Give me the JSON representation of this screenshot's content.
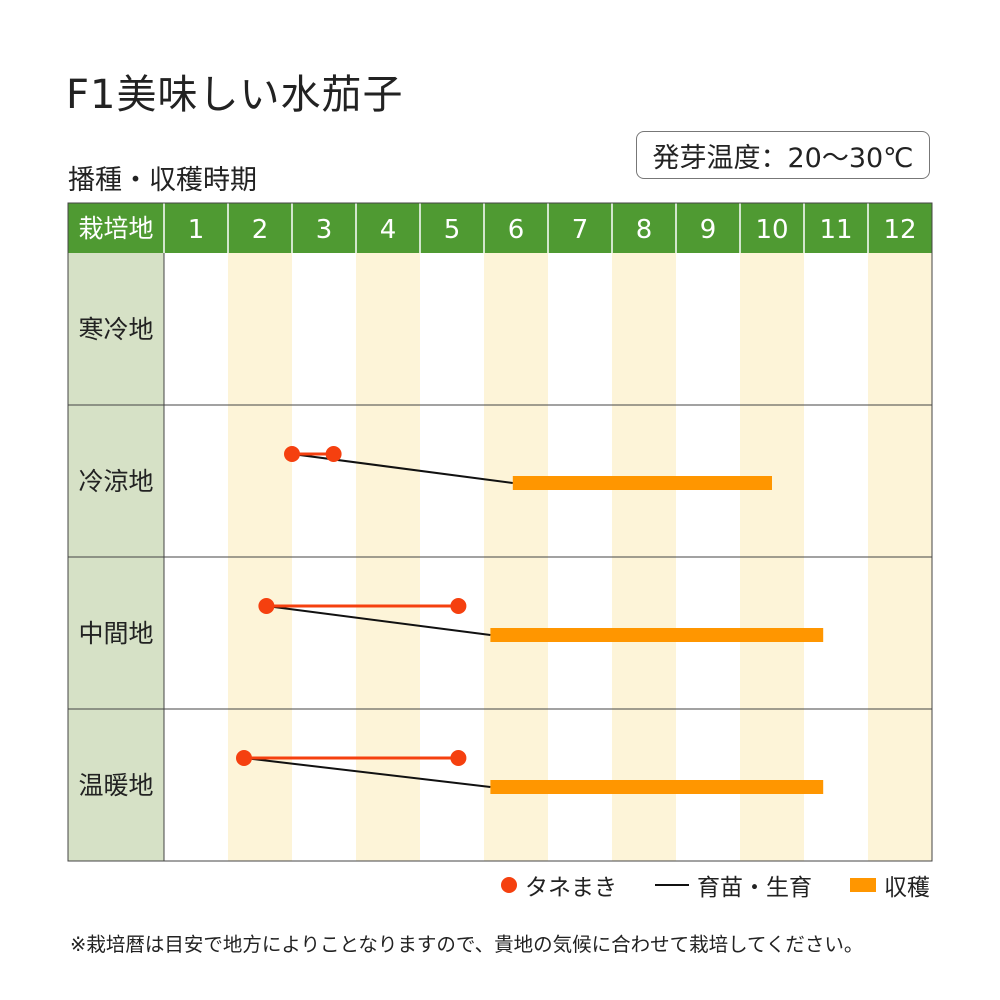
{
  "title": "F1美味しい水茄子",
  "subtitle": "播種・収穫時期",
  "germination": "発芽温度：20～30℃",
  "legend": {
    "sowing": "タネまき",
    "growing": "育苗・生育",
    "harvest": "収穫"
  },
  "note": "※栽培暦は目安で地方によりことなりますので、貴地の気候に合わせて栽培してください。",
  "colors": {
    "header": "#4f9a32",
    "row_label_bg": "#d6e1c6",
    "stripe": "#fdf4d8",
    "sowing": "#f5400f",
    "growing": "#111111",
    "harvest": "#ff9600"
  },
  "chart_data": {
    "type": "table",
    "corner_label": "栽培地",
    "months": [
      "1",
      "2",
      "3",
      "4",
      "5",
      "6",
      "7",
      "8",
      "9",
      "10",
      "11",
      "12"
    ],
    "regions": [
      {
        "name": "寒冷地",
        "sowing": null,
        "harvest": null
      },
      {
        "name": "冷涼地",
        "sowing": [
          3.0,
          3.65
        ],
        "harvest": [
          6.45,
          10.5
        ]
      },
      {
        "name": "中間地",
        "sowing": [
          2.6,
          5.6
        ],
        "harvest": [
          6.1,
          11.3
        ]
      },
      {
        "name": "温暖地",
        "sowing": [
          2.25,
          5.6
        ],
        "harvest": [
          6.1,
          11.3
        ]
      }
    ]
  }
}
